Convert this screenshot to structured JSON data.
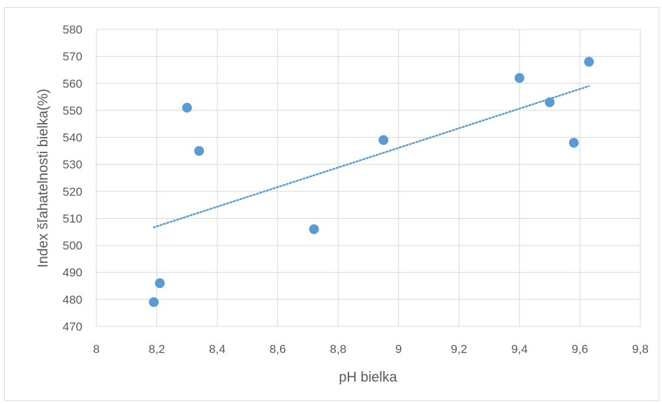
{
  "chart_data": {
    "type": "scatter",
    "title": "",
    "xlabel": "pH bielka",
    "ylabel": "Index šľahatelnosti bielka(%)",
    "xlim": [
      8,
      9.8
    ],
    "ylim": [
      470,
      580
    ],
    "x_ticks": [
      8,
      8.2,
      8.4,
      8.6,
      8.8,
      9,
      9.2,
      9.4,
      9.6,
      9.8
    ],
    "x_tick_labels": [
      "8",
      "8,2",
      "8,4",
      "8,6",
      "8,8",
      "9",
      "9,2",
      "9,4",
      "9,6",
      "9,8"
    ],
    "y_ticks": [
      470,
      480,
      490,
      500,
      510,
      520,
      530,
      540,
      550,
      560,
      570,
      580
    ],
    "y_tick_labels": [
      "470",
      "480",
      "490",
      "500",
      "510",
      "520",
      "530",
      "540",
      "550",
      "560",
      "570",
      "580"
    ],
    "grid": true,
    "legend": "none",
    "series": [
      {
        "x": [
          8.19,
          8.21,
          8.3,
          8.34,
          8.72,
          8.95,
          9.4,
          9.5,
          9.58,
          9.63
        ],
        "y": [
          479,
          486,
          551,
          535,
          506,
          539,
          562,
          553,
          538,
          568
        ],
        "color": "#5b9bd5"
      }
    ],
    "trendline": {
      "type": "linear",
      "x_range": [
        8.19,
        9.63
      ],
      "y_range": [
        506.7,
        559
      ],
      "style": "dotted",
      "color": "#5b9bd5"
    }
  }
}
